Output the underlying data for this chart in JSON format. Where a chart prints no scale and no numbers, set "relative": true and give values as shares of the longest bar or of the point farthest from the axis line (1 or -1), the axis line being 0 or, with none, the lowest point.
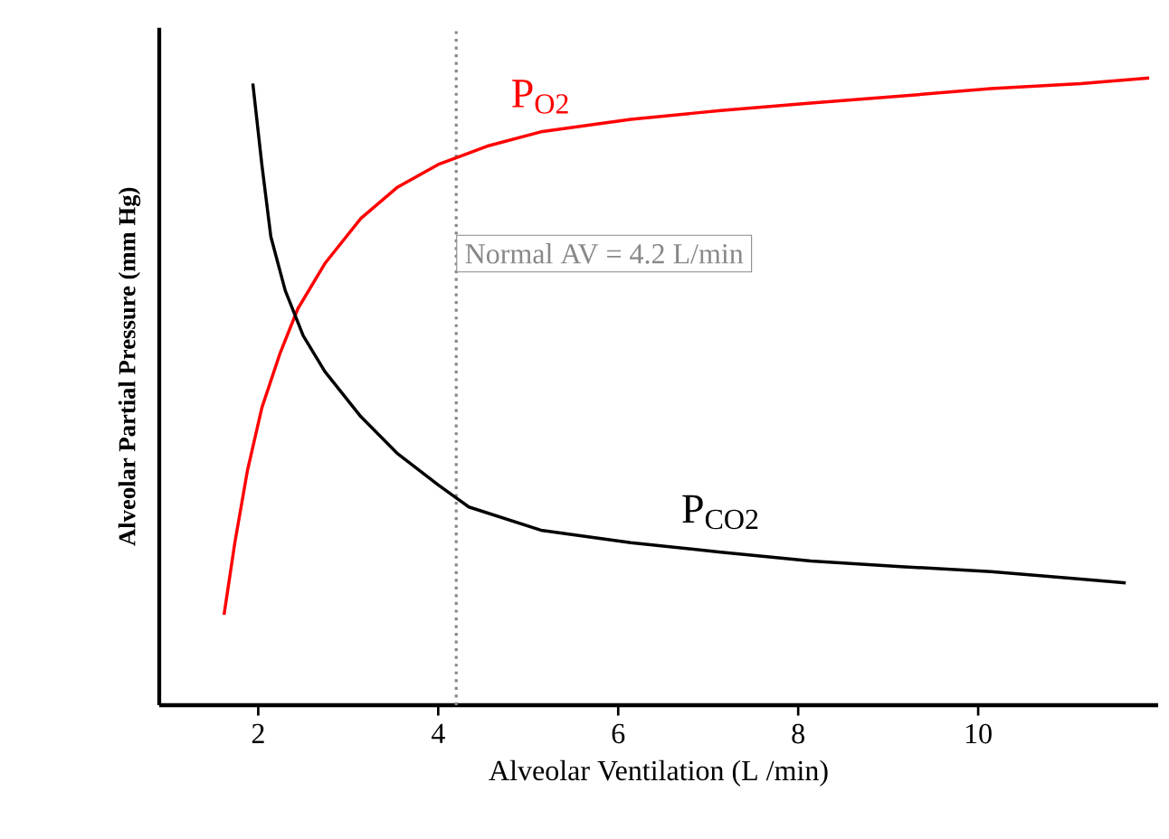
{
  "chart_data": {
    "type": "line",
    "relative": true,
    "xlabel": "Alveolar Ventilation (L /min)",
    "ylabel": "Alveolar Partial Pressure (mm Hg)",
    "xlim": [
      0.9,
      12
    ],
    "xticks": [
      2,
      4,
      6,
      8,
      10
    ],
    "grid": false,
    "marker": "none",
    "line_style": "solid",
    "ref_lines": [
      {
        "axis": "x",
        "value": 4.2,
        "label": "Normal AV = 4.2 L/min",
        "color": "#888888",
        "line_style": "dotted"
      }
    ],
    "series": [
      {
        "name": "P$_{O2}$",
        "color": "#ff0000",
        "x": [
          1.62,
          1.74,
          1.88,
          2.04,
          2.24,
          2.44,
          2.74,
          3.14,
          3.54,
          4.0,
          4.54,
          5.14,
          6.14,
          7.14,
          8.14,
          9.14,
          10.14,
          11.14,
          11.9
        ],
        "values": [
          0.144,
          0.259,
          0.374,
          0.474,
          0.56,
          0.632,
          0.704,
          0.776,
          0.825,
          0.862,
          0.891,
          0.914,
          0.934,
          0.948,
          0.96,
          0.971,
          0.983,
          0.991,
          1.0
        ]
      },
      {
        "name": "P$_{CO2}$",
        "color": "#000000",
        "x": [
          1.94,
          2.04,
          2.14,
          2.3,
          2.5,
          2.74,
          3.14,
          3.54,
          4.0,
          4.34,
          5.14,
          6.14,
          7.14,
          8.14,
          9.14,
          10.14,
          11.14,
          11.64
        ],
        "values": [
          0.991,
          0.862,
          0.747,
          0.661,
          0.589,
          0.532,
          0.46,
          0.402,
          0.351,
          0.316,
          0.279,
          0.259,
          0.244,
          0.23,
          0.221,
          0.213,
          0.201,
          0.195
        ]
      }
    ]
  }
}
